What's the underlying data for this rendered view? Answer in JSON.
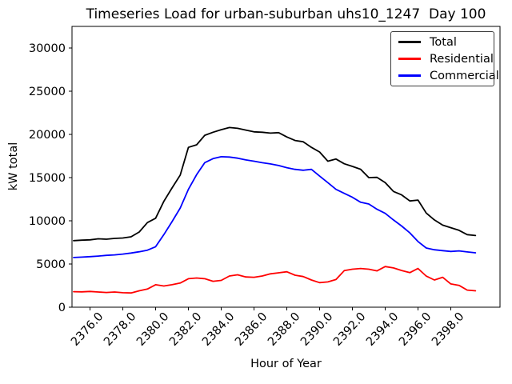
{
  "chart_data": {
    "type": "line",
    "title": "Timeseries Load for urban-suburban uhs10_1247  Day 100",
    "xlabel": "Hour of Year",
    "ylabel": "kW total",
    "grid": false,
    "background": "#ffffff",
    "axis_color": "#000000",
    "xlim": [
      2374.9,
      2401.0
    ],
    "ylim": [
      0,
      32500
    ],
    "xticks": {
      "values": [
        2376,
        2378,
        2380,
        2382,
        2384,
        2386,
        2388,
        2390,
        2392,
        2394,
        2396,
        2398
      ],
      "labels": [
        "2376.0",
        "2378.0",
        "2380.0",
        "2382.0",
        "2384.0",
        "2386.0",
        "2388.0",
        "2390.0",
        "2392.0",
        "2394.0",
        "2396.0",
        "2398.0"
      ]
    },
    "yticks": {
      "values": [
        0,
        5000,
        10000,
        15000,
        20000,
        25000,
        30000
      ],
      "labels": [
        "0",
        "5000",
        "10000",
        "15000",
        "20000",
        "25000",
        "30000"
      ]
    },
    "legend": {
      "position": "upper right",
      "entries": [
        "Total",
        "Residential",
        "Commercial"
      ]
    },
    "x": [
      2375.0,
      2375.5,
      2376.0,
      2376.5,
      2377.0,
      2377.5,
      2378.0,
      2378.5,
      2379.0,
      2379.5,
      2380.0,
      2380.5,
      2381.0,
      2381.5,
      2382.0,
      2382.5,
      2383.0,
      2383.5,
      2384.0,
      2384.5,
      2385.0,
      2385.5,
      2386.0,
      2386.5,
      2387.0,
      2387.5,
      2388.0,
      2388.5,
      2389.0,
      2389.5,
      2390.0,
      2390.5,
      2391.0,
      2391.5,
      2392.0,
      2392.5,
      2393.0,
      2393.5,
      2394.0,
      2394.5,
      2395.0,
      2395.5,
      2396.0,
      2396.5,
      2397.0,
      2397.5,
      2398.0,
      2398.5,
      2399.0,
      2399.5
    ],
    "series": [
      {
        "name": "Total",
        "color": "#000000",
        "values": [
          7700,
          7760,
          7800,
          7920,
          7870,
          7960,
          8010,
          8150,
          8700,
          9800,
          10300,
          12250,
          13800,
          15300,
          18500,
          18800,
          19900,
          20250,
          20550,
          20800,
          20700,
          20500,
          20300,
          20250,
          20150,
          20200,
          19700,
          19300,
          19150,
          18500,
          17960,
          16900,
          17150,
          16600,
          16300,
          15960,
          15000,
          15030,
          14420,
          13400,
          13000,
          12300,
          12400,
          10900,
          10100,
          9500,
          9200,
          8900,
          8400,
          8300
        ]
      },
      {
        "name": "Residential",
        "color": "#ff0000",
        "values": [
          1800,
          1780,
          1820,
          1760,
          1700,
          1760,
          1680,
          1650,
          1900,
          2100,
          2600,
          2450,
          2600,
          2800,
          3300,
          3380,
          3300,
          3000,
          3100,
          3610,
          3750,
          3500,
          3460,
          3610,
          3860,
          3980,
          4100,
          3700,
          3550,
          3150,
          2840,
          2930,
          3200,
          4230,
          4400,
          4480,
          4400,
          4200,
          4700,
          4550,
          4250,
          4000,
          4480,
          3600,
          3150,
          3460,
          2690,
          2530,
          1980,
          1900
        ]
      },
      {
        "name": "Commercial",
        "color": "#0000ff",
        "values": [
          5750,
          5800,
          5850,
          5920,
          6000,
          6060,
          6150,
          6270,
          6420,
          6600,
          7000,
          8400,
          9900,
          11480,
          13640,
          15340,
          16730,
          17190,
          17420,
          17380,
          17250,
          17050,
          16900,
          16720,
          16580,
          16400,
          16150,
          15950,
          15850,
          15950,
          15180,
          14420,
          13640,
          13180,
          12720,
          12150,
          11940,
          11330,
          10860,
          10100,
          9400,
          8600,
          7600,
          6850,
          6650,
          6550,
          6450,
          6520,
          6400,
          6300
        ]
      }
    ]
  }
}
